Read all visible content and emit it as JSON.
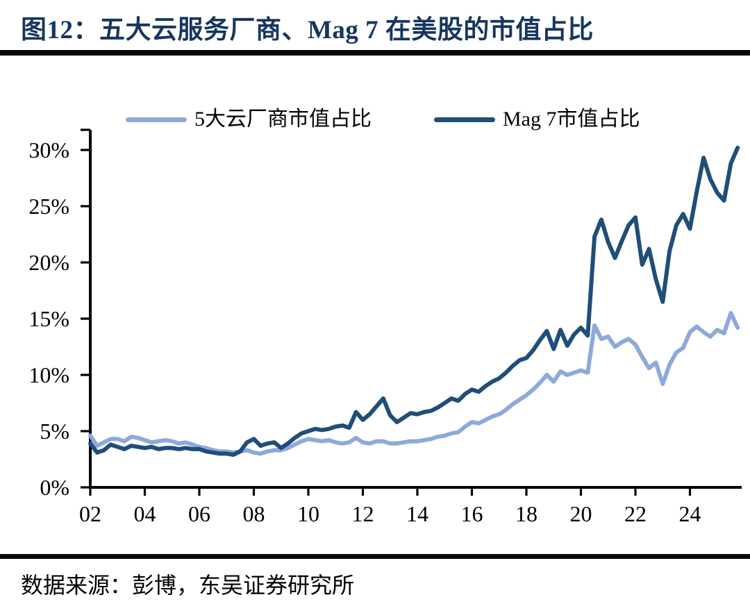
{
  "title": "图12：五大云服务厂商、Mag 7 在美股的市值占比",
  "source": "数据来源：彭博，东吴证券研究所",
  "colors": {
    "title": "#17365D",
    "divider": "#0a0a0a",
    "axis": "#000000",
    "cloud5_line": "#8EA9DB",
    "mag7_line": "#1F4E79"
  },
  "chart_data": {
    "type": "line",
    "title": "",
    "xlabel": "",
    "ylabel": "",
    "grid": false,
    "legend_position": "top",
    "x_start": 2002,
    "x_step": 0.25,
    "xlim": [
      2002,
      2026
    ],
    "ylim": [
      0,
      30
    ],
    "xticks": {
      "values": [
        2002,
        2004,
        2006,
        2008,
        2010,
        2012,
        2014,
        2016,
        2018,
        2020,
        2022,
        2024
      ],
      "labels": [
        "02",
        "04",
        "06",
        "08",
        "10",
        "12",
        "14",
        "16",
        "18",
        "20",
        "22",
        "24"
      ]
    },
    "yticks": {
      "values": [
        0,
        5,
        10,
        15,
        20,
        25,
        30
      ],
      "labels": [
        "0%",
        "5%",
        "10%",
        "15%",
        "20%",
        "25%",
        "30%"
      ]
    },
    "series": [
      {
        "key": "cloud5",
        "name": "5大云厂商市值占比",
        "color": "#8EA9DB",
        "values": [
          4.6,
          3.7,
          4.0,
          4.3,
          4.3,
          4.1,
          4.5,
          4.4,
          4.2,
          4.0,
          4.1,
          4.2,
          4.1,
          3.9,
          4.0,
          3.8,
          3.6,
          3.5,
          3.3,
          3.2,
          3.2,
          3.1,
          3.2,
          3.3,
          3.1,
          3.0,
          3.2,
          3.3,
          3.3,
          3.5,
          3.8,
          4.1,
          4.3,
          4.2,
          4.1,
          4.2,
          4.0,
          3.9,
          4.0,
          4.4,
          4.0,
          3.9,
          4.1,
          4.1,
          3.9,
          3.9,
          4.0,
          4.1,
          4.1,
          4.2,
          4.3,
          4.5,
          4.6,
          4.8,
          4.9,
          5.4,
          5.8,
          5.7,
          6.0,
          6.3,
          6.5,
          6.9,
          7.4,
          7.8,
          8.2,
          8.7,
          9.3,
          10.0,
          9.4,
          10.3,
          10.0,
          10.2,
          10.4,
          10.2,
          14.4,
          13.2,
          13.4,
          12.5,
          12.9,
          13.2,
          12.7,
          11.6,
          10.6,
          11.1,
          9.2,
          10.9,
          12.0,
          12.4,
          13.8,
          14.3,
          13.8,
          13.4,
          14.0,
          13.7,
          15.5,
          14.2
        ]
      },
      {
        "key": "mag7",
        "name": "Mag 7市值占比",
        "color": "#1F4E79",
        "values": [
          3.9,
          3.1,
          3.3,
          3.8,
          3.6,
          3.4,
          3.7,
          3.6,
          3.5,
          3.6,
          3.4,
          3.5,
          3.5,
          3.4,
          3.5,
          3.4,
          3.4,
          3.2,
          3.1,
          3.0,
          3.0,
          2.9,
          3.2,
          4.0,
          4.3,
          3.7,
          3.9,
          4.0,
          3.5,
          3.9,
          4.4,
          4.8,
          5.0,
          5.2,
          5.1,
          5.2,
          5.4,
          5.5,
          5.3,
          6.7,
          6.0,
          6.5,
          7.2,
          7.9,
          6.4,
          5.8,
          6.2,
          6.6,
          6.5,
          6.7,
          6.8,
          7.1,
          7.5,
          7.9,
          7.7,
          8.3,
          8.7,
          8.5,
          9.0,
          9.4,
          9.7,
          10.2,
          10.8,
          11.3,
          11.5,
          12.2,
          13.1,
          13.9,
          12.3,
          14.0,
          12.6,
          13.6,
          14.2,
          13.5,
          22.3,
          23.8,
          21.8,
          20.4,
          21.9,
          23.3,
          24.0,
          19.8,
          21.2,
          18.5,
          16.5,
          21.0,
          23.3,
          24.3,
          23.0,
          26.3,
          29.3,
          27.4,
          26.2,
          25.5,
          28.8,
          30.2
        ]
      }
    ]
  }
}
